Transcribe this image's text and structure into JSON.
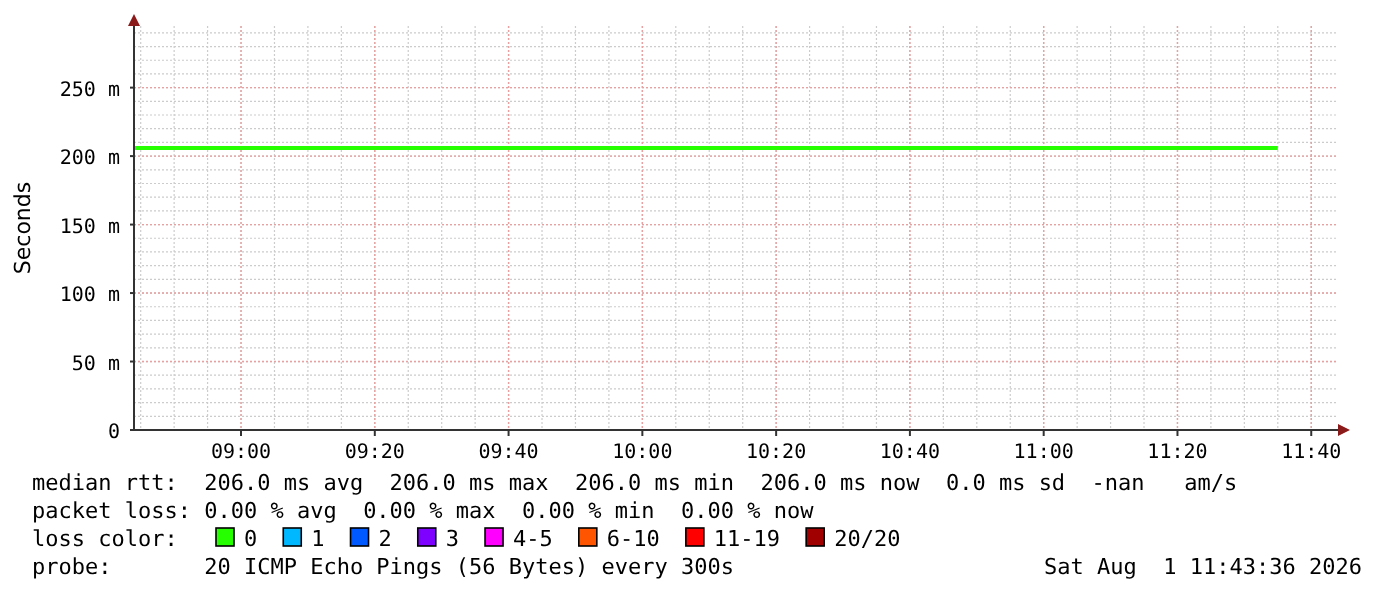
{
  "chart_data": {
    "type": "line",
    "ylabel": "Seconds",
    "x": [
      "2026-08-01T08:44",
      "2026-08-01T11:35"
    ],
    "xlim": [
      "2026-08-01T08:44",
      "2026-08-01T11:44"
    ],
    "xticks": [
      {
        "value": "2026-08-01T09:00",
        "label": "09:00"
      },
      {
        "value": "2026-08-01T09:20",
        "label": "09:20"
      },
      {
        "value": "2026-08-01T09:40",
        "label": "09:40"
      },
      {
        "value": "2026-08-01T10:00",
        "label": "10:00"
      },
      {
        "value": "2026-08-01T10:20",
        "label": "10:20"
      },
      {
        "value": "2026-08-01T10:40",
        "label": "10:40"
      },
      {
        "value": "2026-08-01T11:00",
        "label": "11:00"
      },
      {
        "value": "2026-08-01T11:20",
        "label": "11:20"
      },
      {
        "value": "2026-08-01T11:40",
        "label": "11:40"
      }
    ],
    "ylim": [
      0,
      295
    ],
    "yticks": [
      0,
      {
        "value": 50,
        "label": "50 m"
      },
      {
        "value": 100,
        "label": "100 m"
      },
      {
        "value": 150,
        "label": "150 m"
      },
      {
        "value": 200,
        "label": "200 m"
      },
      {
        "value": 250,
        "label": "250 m"
      }
    ],
    "grid": true,
    "legend": "bottom",
    "legend_title": "loss color:",
    "marker": "none",
    "line_style": "solid",
    "series": [
      {
        "name": "0",
        "color": "#26ff00",
        "values": [
          206,
          206
        ]
      },
      {
        "name": "1",
        "color": "#00b8ff",
        "values": [
          null,
          null
        ]
      },
      {
        "name": "2",
        "color": "#0059ff",
        "values": [
          null,
          null
        ]
      },
      {
        "name": "3",
        "color": "#7e00ff",
        "values": [
          null,
          null
        ]
      },
      {
        "name": "4-5",
        "color": "#ff00ff",
        "values": [
          null,
          null
        ]
      },
      {
        "name": "6-10",
        "color": "#ff5500",
        "values": [
          null,
          null
        ]
      },
      {
        "name": "11-19",
        "color": "#ff0000",
        "values": [
          null,
          null
        ]
      },
      {
        "name": "20/20",
        "color": "#a10000",
        "values": [
          null,
          null
        ]
      }
    ],
    "annotations": [
      "median rtt:  206.0 ms avg  206.0 ms max  206.0 ms min  206.0 ms now  0.0 ms sd  -nan   am/s",
      "packet loss: 0.00 % avg  0.00 % max  0.00 % min  0.00 % now",
      "probe:       20 ICMP Echo Pings (56 Bytes) every 300s",
      "Sat Aug  1 11:43:36 2026"
    ]
  }
}
